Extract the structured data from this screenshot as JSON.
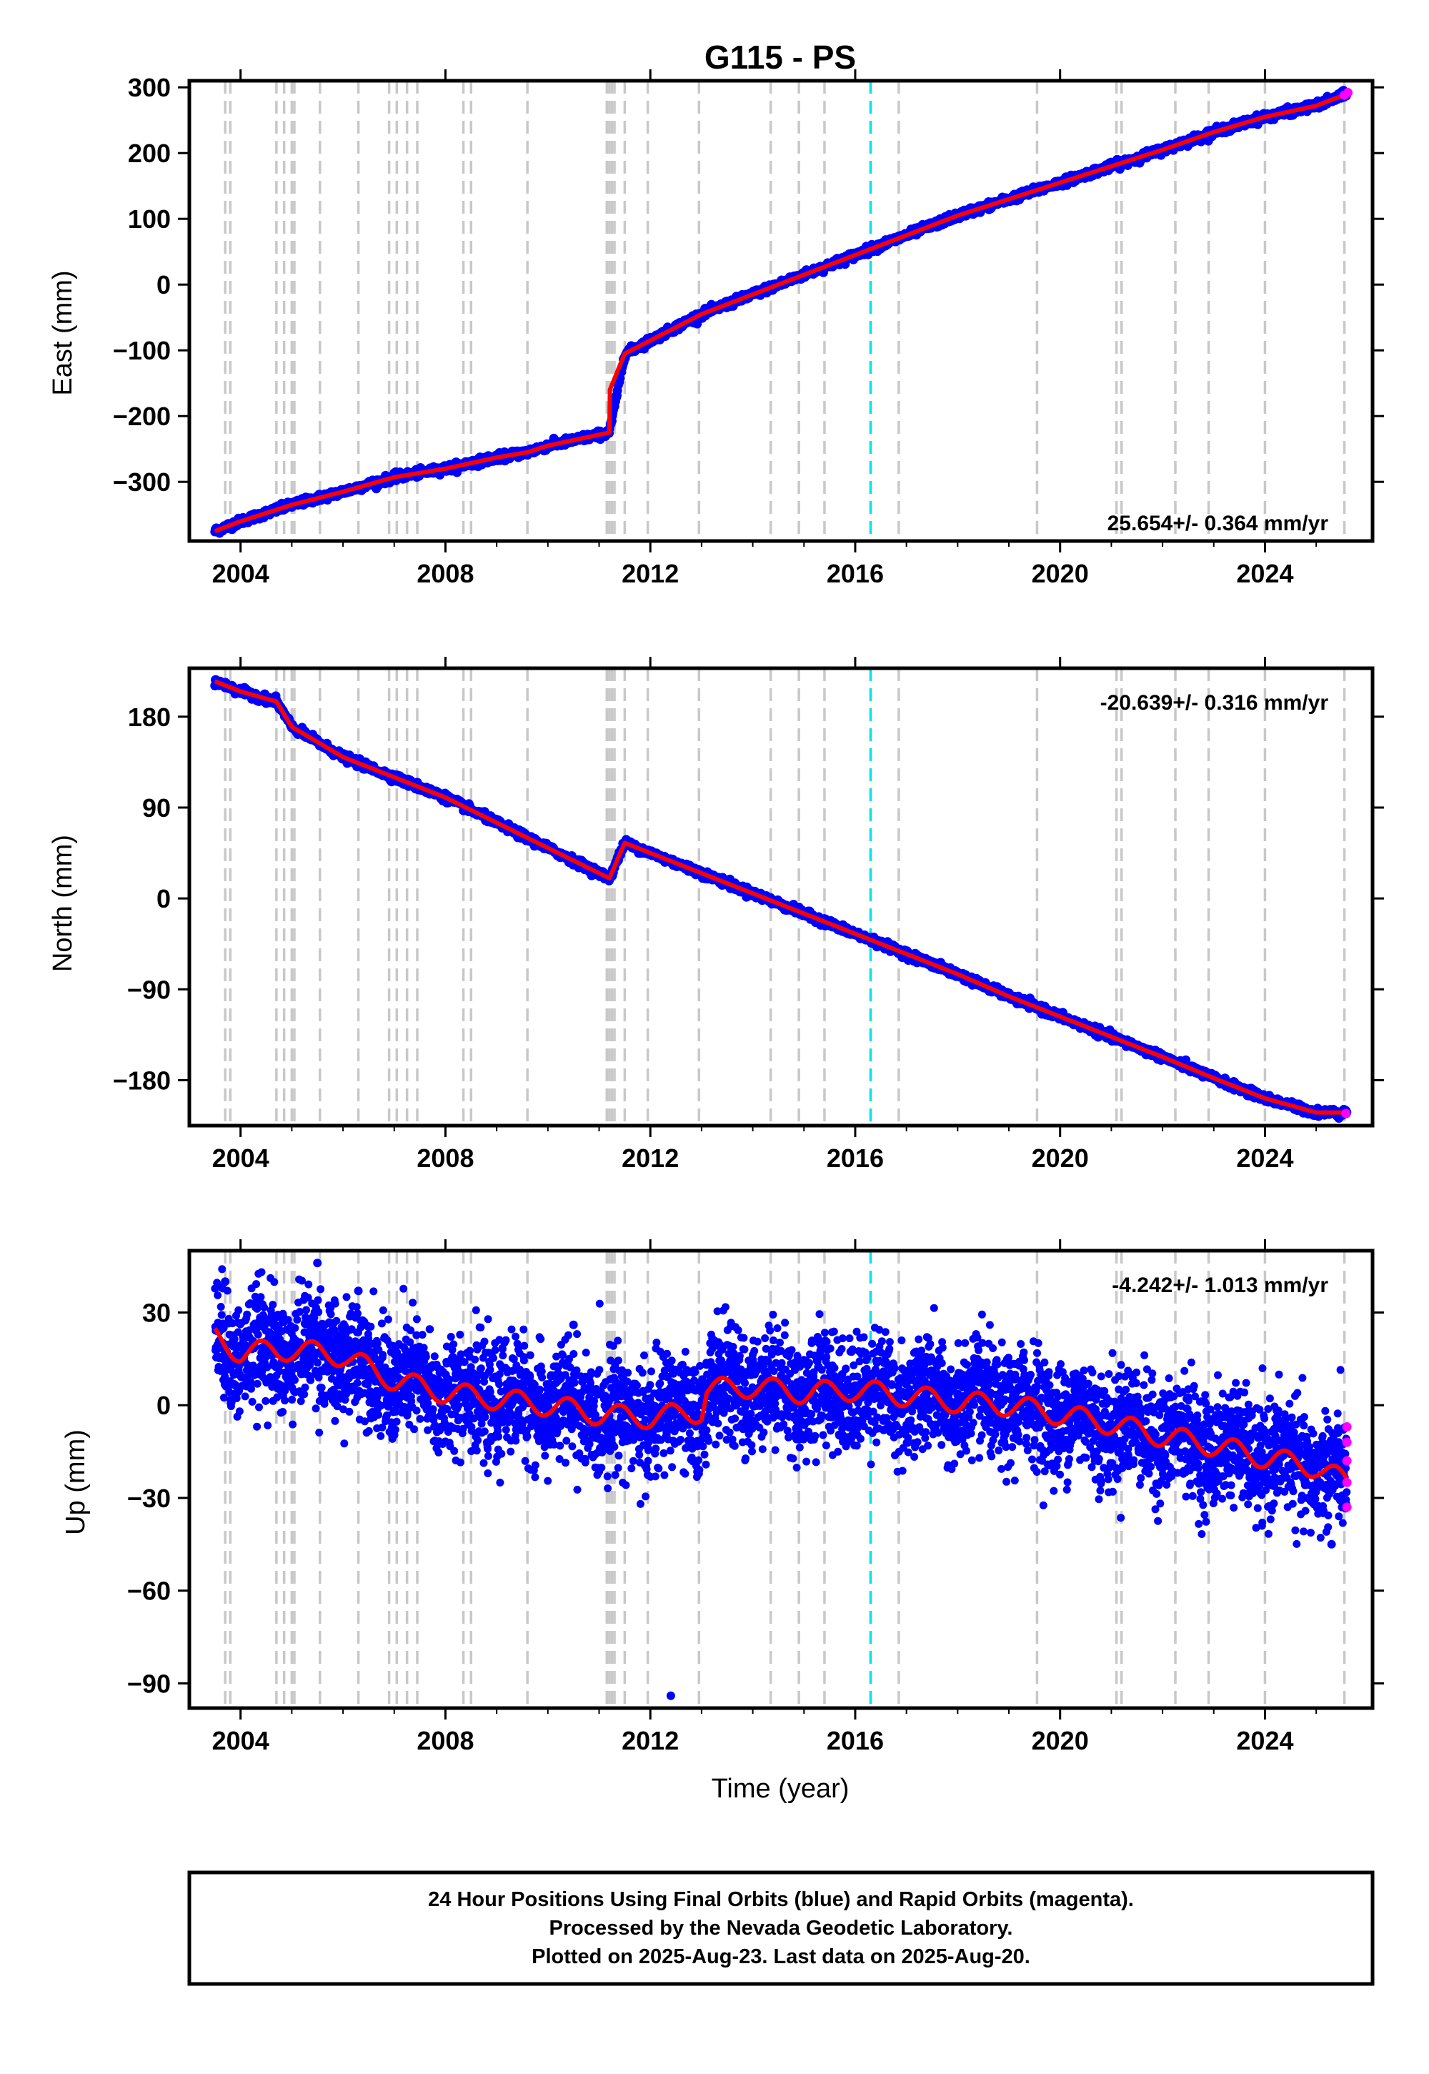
{
  "chart_data": [
    {
      "type": "scatter",
      "component": "East",
      "title": "G115 - PS",
      "ylabel": "East (mm)",
      "xlabel": "",
      "xlim": [
        2003.0,
        2026.1
      ],
      "ylim": [
        -390,
        310
      ],
      "xticks": [
        "2004",
        "2008",
        "2012",
        "2016",
        "2020",
        "2024"
      ],
      "yticks": [
        "300",
        "200",
        "100",
        "0",
        "−100",
        "−200",
        "−300"
      ],
      "rate_label": "25.654+/- 0.364 mm/yr",
      "grid": false,
      "series": [
        {
          "name": "Final Orbits",
          "color": "#0000ff",
          "style": "points",
          "x": [
            2003.5,
            2004.0,
            2005.0,
            2006.0,
            2007.0,
            2008.0,
            2009.0,
            2009.6,
            2010.0,
            2011.2,
            2011.5,
            2012.0,
            2013.0,
            2014.0,
            2015.0,
            2016.0,
            2017.0,
            2018.0,
            2019.0,
            2020.0,
            2021.0,
            2022.0,
            2023.0,
            2024.0,
            2025.0,
            2025.6
          ],
          "y": [
            -375,
            -360,
            -335,
            -315,
            -293,
            -280,
            -263,
            -255,
            -245,
            -225,
            -105,
            -85,
            -45,
            -15,
            15,
            45,
            75,
            105,
            130,
            155,
            180,
            205,
            232,
            255,
            272,
            290
          ]
        },
        {
          "name": "Rapid Orbits",
          "color": "#ff00ff",
          "style": "points",
          "x": [
            2025.55,
            2025.62
          ],
          "y": [
            288,
            292
          ]
        },
        {
          "name": "model",
          "color": "#ff0000",
          "style": "line",
          "x": [
            2003.5,
            2004.0,
            2005.0,
            2006.0,
            2007.0,
            2008.0,
            2009.0,
            2009.6,
            2010.0,
            2011.2,
            2011.21,
            2011.5,
            2012.0,
            2013.0,
            2014.0,
            2015.0,
            2016.0,
            2017.0,
            2018.0,
            2019.0,
            2020.0,
            2021.0,
            2022.0,
            2023.0,
            2024.0,
            2025.0,
            2025.6
          ],
          "y": [
            -375,
            -360,
            -335,
            -315,
            -293,
            -280,
            -263,
            -255,
            -245,
            -225,
            -160,
            -105,
            -85,
            -45,
            -15,
            15,
            45,
            75,
            105,
            130,
            155,
            180,
            205,
            232,
            255,
            272,
            290
          ]
        }
      ]
    },
    {
      "type": "scatter",
      "component": "North",
      "ylabel": "North (mm)",
      "xlabel": "",
      "xlim": [
        2003.0,
        2026.1
      ],
      "ylim": [
        -225,
        228
      ],
      "xticks": [
        "2004",
        "2008",
        "2012",
        "2016",
        "2020",
        "2024"
      ],
      "yticks": [
        "180",
        "90",
        "0",
        "−90",
        "−180"
      ],
      "rate_label": "-20.639+/- 0.316 mm/yr",
      "grid": false,
      "series": [
        {
          "name": "Final Orbits",
          "color": "#0000ff",
          "style": "points",
          "x": [
            2003.5,
            2004.0,
            2004.7,
            2005.0,
            2006.0,
            2007.0,
            2008.0,
            2009.0,
            2010.0,
            2011.2,
            2011.5,
            2012.0,
            2013.0,
            2014.0,
            2015.0,
            2016.0,
            2017.0,
            2018.0,
            2019.0,
            2020.0,
            2021.0,
            2022.0,
            2023.0,
            2024.0,
            2025.0,
            2025.6
          ],
          "y": [
            215,
            205,
            195,
            170,
            140,
            120,
            100,
            75,
            50,
            20,
            55,
            45,
            25,
            5,
            -15,
            -35,
            -55,
            -75,
            -97,
            -117,
            -137,
            -157,
            -178,
            -198,
            -212,
            -212
          ]
        },
        {
          "name": "Rapid Orbits",
          "color": "#ff00ff",
          "style": "points",
          "x": [
            2025.58
          ],
          "y": [
            -213
          ]
        },
        {
          "name": "model",
          "color": "#ff0000",
          "style": "line",
          "x": [
            2003.5,
            2004.0,
            2004.7,
            2005.0,
            2006.0,
            2007.0,
            2008.0,
            2009.0,
            2010.0,
            2011.2,
            2011.5,
            2012.0,
            2013.0,
            2014.0,
            2015.0,
            2016.0,
            2017.0,
            2018.0,
            2019.0,
            2020.0,
            2021.0,
            2022.0,
            2023.0,
            2024.0,
            2025.0,
            2025.6
          ],
          "y": [
            215,
            205,
            195,
            170,
            140,
            120,
            100,
            75,
            50,
            20,
            55,
            45,
            25,
            5,
            -15,
            -35,
            -55,
            -75,
            -97,
            -117,
            -137,
            -157,
            -178,
            -198,
            -212,
            -212
          ]
        }
      ]
    },
    {
      "type": "scatter",
      "component": "Up",
      "ylabel": "Up (mm)",
      "xlabel": "Time (year)",
      "xlim": [
        2003.0,
        2026.1
      ],
      "ylim": [
        -98,
        50
      ],
      "xticks": [
        "2004",
        "2008",
        "2012",
        "2016",
        "2020",
        "2024"
      ],
      "yticks": [
        "30",
        "0",
        "−30",
        "−60",
        "−90"
      ],
      "rate_label": "-4.242+/- 1.013 mm/yr",
      "grid": false,
      "series": [
        {
          "name": "Final Orbits",
          "color": "#0000ff",
          "style": "points",
          "x": [
            2003.5,
            2004.0,
            2005.0,
            2006.0,
            2007.0,
            2008.0,
            2009.0,
            2010.0,
            2011.0,
            2012.0,
            2013.0,
            2013.1,
            2014.0,
            2015.0,
            2016.0,
            2017.0,
            2018.0,
            2019.0,
            2020.0,
            2021.0,
            2022.0,
            2023.0,
            2024.0,
            2025.0,
            2025.6
          ],
          "y": [
            22,
            17,
            18,
            16,
            8,
            4,
            2,
            0,
            -3,
            -4,
            -2,
            5,
            6,
            4,
            5,
            3,
            1,
            0,
            -3,
            -6,
            -10,
            -13,
            -17,
            -20,
            -25
          ],
          "scatter_mm": 9,
          "outliers": [
            {
              "x": 2003.7,
              "y": 40
            },
            {
              "x": 2005.5,
              "y": 46
            },
            {
              "x": 2006.3,
              "y": 37
            },
            {
              "x": 2012.4,
              "y": -94
            },
            {
              "x": 2010.5,
              "y": 26
            },
            {
              "x": 2025.3,
              "y": -45
            }
          ]
        },
        {
          "name": "Rapid Orbits",
          "color": "#ff00ff",
          "style": "points",
          "x": [
            2025.6,
            2025.6,
            2025.6,
            2025.6,
            2025.6
          ],
          "y": [
            -7,
            -12,
            -18,
            -25,
            -33
          ]
        },
        {
          "name": "model",
          "color": "#ff0000",
          "style": "line",
          "x": [
            2003.5,
            2004.0,
            2005.0,
            2006.0,
            2007.0,
            2008.0,
            2009.0,
            2010.0,
            2011.0,
            2012.0,
            2013.0,
            2013.1,
            2014.0,
            2015.0,
            2016.0,
            2017.0,
            2018.0,
            2019.0,
            2020.0,
            2021.0,
            2022.0,
            2023.0,
            2024.0,
            2025.0,
            2025.6
          ],
          "y": [
            22,
            17,
            18,
            16,
            8,
            4,
            2,
            0,
            -3,
            -4,
            -2,
            5,
            6,
            4,
            5,
            3,
            1,
            0,
            -3,
            -6,
            -10,
            -13,
            -17,
            -20,
            -25
          ],
          "seasonal_amplitude_mm": 3.5
        }
      ]
    }
  ],
  "equipment_changes_gray": [
    2003.7,
    2003.8,
    2004.7,
    2004.85,
    2005.0,
    2005.05,
    2005.55,
    2006.3,
    2006.9,
    2007.05,
    2007.25,
    2007.45,
    2008.35,
    2008.5,
    2009.6,
    2011.15,
    2011.2,
    2011.25,
    2011.3,
    2011.5,
    2011.95,
    2012.95,
    2014.35,
    2014.9,
    2015.4,
    2016.85,
    2019.55,
    2021.1,
    2021.2,
    2022.25,
    2022.9,
    2024.0,
    2025.55
  ],
  "earthquake_cyan": [
    2016.3
  ],
  "footer": {
    "line1": "24 Hour Positions Using Final Orbits (blue) and Rapid Orbits (magenta).",
    "line2": "Processed by the Nevada Geodetic Laboratory.",
    "line3": "Plotted on 2025-Aug-23. Last data on 2025-Aug-20."
  }
}
